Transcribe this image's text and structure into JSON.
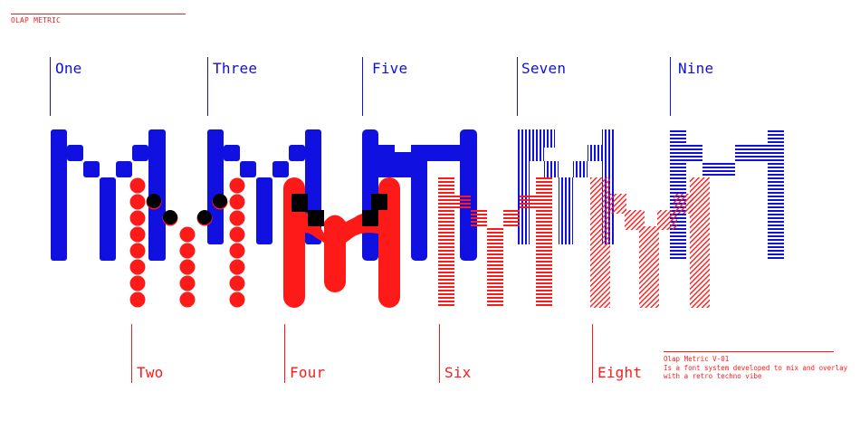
{
  "brand": "OLAP METRIC",
  "blue_labels": [
    "One",
    "Three",
    "Five",
    "Seven",
    "Nine"
  ],
  "red_labels": [
    "Two",
    "Four",
    "Six",
    "Eight"
  ],
  "note": {
    "title": "Olap Metric V-01",
    "line1": "Is a font system developed to mix and overlay",
    "line2": "with a retro techno vibe"
  },
  "colors": {
    "blue": "#1010e0",
    "red": "#ff1a1a",
    "overlap": "#000000"
  }
}
